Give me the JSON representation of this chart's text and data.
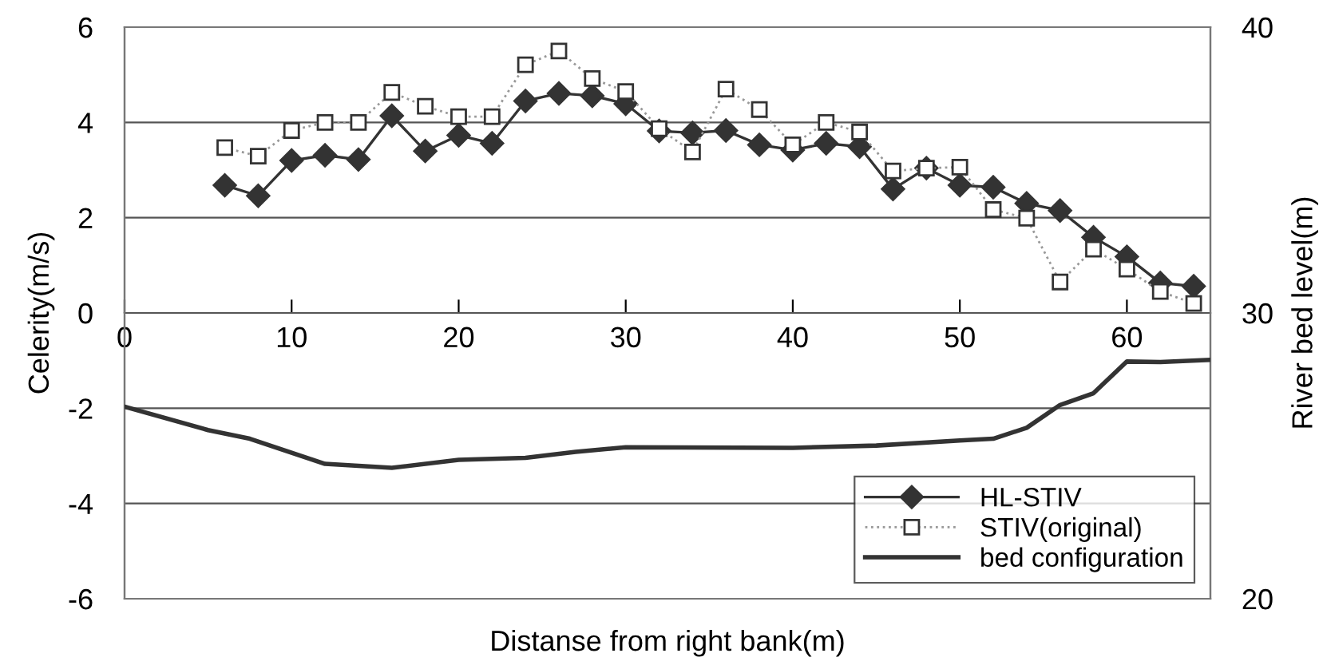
{
  "chart_data": {
    "type": "line",
    "xlabel": "Distanse from right bank(m)",
    "ylabel": "Celerity(m/s)",
    "y2label": "River bed level(m)",
    "xlim": [
      0,
      65
    ],
    "xticks": [
      0,
      10,
      20,
      30,
      40,
      50,
      60
    ],
    "ylim": [
      -6,
      6
    ],
    "yticks": [
      -6,
      -4,
      -2,
      0,
      2,
      4,
      6
    ],
    "y2lim": [
      20,
      40
    ],
    "y2ticks": [
      20,
      30,
      40
    ],
    "grid": "y",
    "legend": "bottom right",
    "series": [
      {
        "name": "HL-STIV",
        "color": "#333333",
        "marker": "diamond",
        "line_style": "solid",
        "x": [
          6,
          8,
          10,
          12,
          14,
          16,
          18,
          20,
          22,
          24,
          26,
          28,
          30,
          32,
          34,
          36,
          38,
          40,
          42,
          44,
          46,
          48,
          50,
          52,
          54,
          56,
          58,
          60,
          62,
          64
        ],
        "values": [
          2.68,
          2.46,
          3.2,
          3.31,
          3.22,
          4.14,
          3.4,
          3.73,
          3.56,
          4.45,
          4.61,
          4.56,
          4.39,
          3.82,
          3.78,
          3.83,
          3.53,
          3.42,
          3.56,
          3.49,
          2.6,
          3.04,
          2.68,
          2.64,
          2.3,
          2.15,
          1.59,
          1.18,
          0.63,
          0.56
        ]
      },
      {
        "name": "STIV(original)",
        "color": "#333333",
        "marker": "square",
        "line_style": "dotted",
        "x": [
          6,
          8,
          10,
          12,
          14,
          16,
          18,
          20,
          22,
          24,
          26,
          28,
          30,
          32,
          34,
          36,
          38,
          40,
          42,
          44,
          46,
          48,
          50,
          52,
          54,
          56,
          58,
          60,
          62,
          64
        ],
        "values": [
          3.47,
          3.29,
          3.83,
          4.0,
          4.0,
          4.63,
          4.34,
          4.12,
          4.12,
          5.21,
          5.5,
          4.92,
          4.65,
          3.87,
          3.38,
          4.7,
          4.27,
          3.53,
          4.0,
          3.8,
          2.98,
          3.04,
          3.06,
          2.17,
          1.99,
          0.65,
          1.34,
          0.92,
          0.45,
          0.2
        ]
      },
      {
        "name": "bed configuration",
        "axis": "y2",
        "color": "#333333",
        "marker": "none",
        "line_style": "solid",
        "x": [
          0,
          5,
          7.5,
          12,
          16,
          20,
          24,
          27,
          30,
          40,
          45,
          50,
          52,
          54,
          56,
          58,
          60,
          62,
          65
        ],
        "values": [
          26.72,
          25.9,
          25.6,
          24.72,
          24.58,
          24.86,
          24.93,
          25.14,
          25.3,
          25.28,
          25.36,
          25.54,
          25.6,
          25.98,
          26.78,
          27.19,
          28.3,
          28.28,
          28.36
        ]
      }
    ]
  }
}
